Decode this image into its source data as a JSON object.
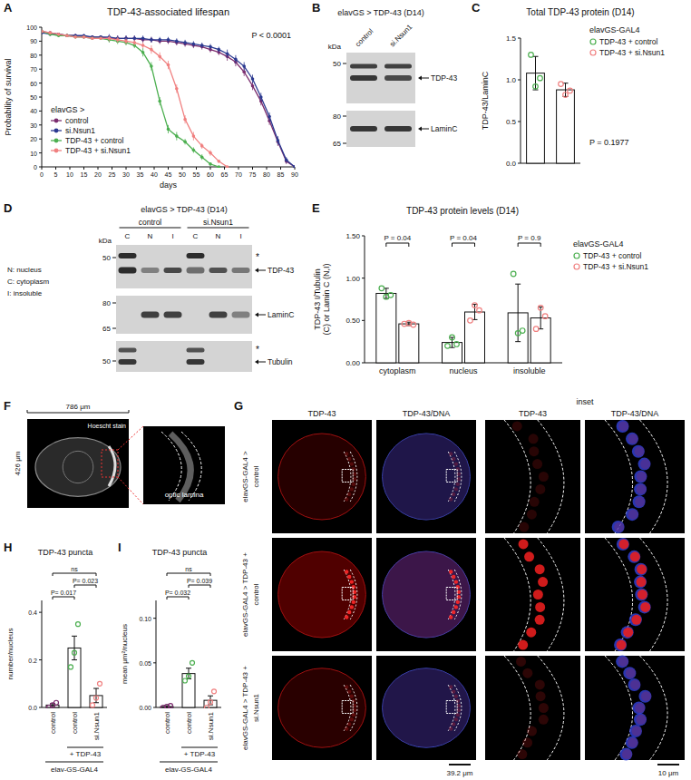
{
  "chart_data": [
    {
      "label": "A",
      "type": "line",
      "title": "TDP-43-associated lifespan",
      "x_label": "days",
      "y_label": "Probability of survival",
      "annotation": "P < 0.0001",
      "legend_title": "elavGS >",
      "legend": "bottom-left",
      "marker": "circle",
      "x": [
        0,
        3,
        6,
        9,
        12,
        15,
        18,
        21,
        24,
        27,
        30,
        33,
        36,
        39,
        42,
        45,
        48,
        51,
        54,
        57,
        60,
        63,
        66,
        69,
        72,
        75,
        78,
        81,
        84,
        87,
        90
      ],
      "series": [
        {
          "name": "control",
          "color": "#7b2d6e",
          "values": [
            97,
            96,
            95,
            94,
            94,
            93,
            93,
            93,
            92,
            92,
            92,
            92,
            91,
            91,
            90,
            90,
            89,
            88,
            87,
            86,
            84,
            82,
            79,
            75,
            68,
            58,
            47,
            33,
            18,
            4,
            0
          ],
          "errors": [
            1,
            1,
            1,
            1,
            1,
            1,
            1,
            1,
            2,
            2,
            2,
            2,
            2,
            2,
            2,
            2,
            2,
            2,
            2,
            2,
            2,
            2,
            3,
            3,
            3,
            3,
            3,
            3,
            3,
            2,
            0
          ]
        },
        {
          "name": "si.Nsun1",
          "color": "#2b3990",
          "values": [
            96,
            95,
            95,
            94,
            94,
            94,
            93,
            93,
            93,
            92,
            92,
            92,
            92,
            91,
            91,
            91,
            90,
            89,
            88,
            87,
            86,
            84,
            81,
            77,
            72,
            63,
            50,
            36,
            19,
            5,
            0
          ],
          "errors": [
            1,
            1,
            1,
            1,
            1,
            1,
            1,
            1,
            2,
            2,
            2,
            2,
            2,
            2,
            2,
            2,
            2,
            2,
            2,
            2,
            2,
            2,
            3,
            3,
            3,
            3,
            3,
            3,
            3,
            2,
            0
          ]
        },
        {
          "name": "TDP-43 + control",
          "color": "#4caf50",
          "values": [
            97,
            95,
            94,
            94,
            93,
            93,
            92,
            92,
            91,
            90,
            89,
            87,
            82,
            72,
            47,
            27,
            22,
            18,
            12,
            7,
            2,
            0,
            null,
            null,
            null,
            null,
            null,
            null,
            null,
            null,
            null
          ],
          "errors": [
            1,
            1,
            1,
            1,
            1,
            1,
            1,
            1,
            2,
            2,
            2,
            2,
            3,
            3,
            3,
            3,
            3,
            2,
            2,
            2,
            1,
            0,
            null,
            null,
            null,
            null,
            null,
            null,
            null,
            null,
            null
          ]
        },
        {
          "name": "TDP-43 + si.Nsun1",
          "color": "#f08080",
          "values": [
            97,
            96,
            95,
            94,
            93,
            93,
            92,
            92,
            92,
            91,
            90,
            89,
            87,
            84,
            79,
            73,
            56,
            34,
            22,
            15,
            10,
            4,
            0,
            null,
            null,
            null,
            null,
            null,
            null,
            null,
            null
          ],
          "errors": [
            1,
            1,
            1,
            1,
            1,
            1,
            1,
            1,
            2,
            2,
            2,
            2,
            2,
            3,
            3,
            3,
            3,
            3,
            3,
            2,
            2,
            1,
            0,
            null,
            null,
            null,
            null,
            null,
            null,
            null,
            null
          ]
        }
      ],
      "xlim": [
        0,
        90
      ],
      "xticks": [
        0,
        5,
        10,
        15,
        20,
        25,
        30,
        35,
        40,
        45,
        50,
        55,
        60,
        65,
        70,
        75,
        80,
        85,
        90
      ],
      "ylim": [
        0,
        100
      ],
      "yticks": [
        0,
        10,
        20,
        30,
        40,
        50,
        60,
        70,
        80,
        90,
        100
      ]
    },
    {
      "label": "C",
      "type": "bar",
      "title": "Total TDP-43 protein (D14)",
      "y_label": "TDP-43/LaminC",
      "legend_title": "elavGS-GAL4",
      "legend": "top-right",
      "annotation": "P = 0.1977",
      "tick_labels": "y",
      "categories": [
        "TDP-43 + control",
        "TDP-43 + si.Nsun1"
      ],
      "values": [
        1.08,
        0.88
      ],
      "errors": [
        0.2,
        0.08
      ],
      "points": [
        [
          1.3,
          0.92,
          1.02
        ],
        [
          0.95,
          0.82,
          0.87
        ]
      ],
      "colors": [
        "#4caf50",
        "#f08080"
      ],
      "ylim": [
        0,
        1.5
      ],
      "yticks": [
        {
          "value": 0,
          "label": "0.0"
        },
        0.5,
        {
          "value": 1,
          "label": "1.0"
        },
        1.5
      ]
    },
    {
      "label": "E",
      "type": "bar",
      "title": "TDP-43 protein levels (D14)",
      "y_label": "TDP-43 I/Tubulin (C) or Lamin C (N,I)",
      "legend_title": "elavGS-GAL4",
      "legend": "top-right",
      "categories": [
        "cytoplasm",
        "nucleus",
        "insoluble"
      ],
      "p_values": [
        "P = 0.04",
        "P = 0.04",
        "P = 0.9"
      ],
      "series": [
        {
          "name": "TDP-43 + control",
          "color": "#4caf50",
          "values": [
            0.82,
            0.24,
            0.59
          ],
          "errors": [
            0.06,
            0.06,
            0.34
          ],
          "points": [
            [
              0.88,
              0.78,
              0.8
            ],
            [
              0.2,
              0.3,
              0.22
            ],
            [
              1.05,
              0.35,
              0.38
            ]
          ]
        },
        {
          "name": "TDP-43 + si.Nsun1",
          "color": "#f08080",
          "values": [
            0.46,
            0.6,
            0.53
          ],
          "errors": [
            0.02,
            0.09,
            0.13
          ],
          "points": [
            [
              0.46,
              0.47,
              0.45
            ],
            [
              0.5,
              0.68,
              0.62
            ],
            [
              0.4,
              0.65,
              0.55
            ]
          ]
        }
      ],
      "ylim": [
        0,
        1.5
      ],
      "yticks": [
        {
          "value": 0,
          "label": "0.00"
        },
        {
          "value": 0.5,
          "label": "0.50"
        },
        {
          "value": 1,
          "label": "1.00"
        },
        {
          "value": 1.5,
          "label": "1.50"
        }
      ]
    },
    {
      "label": "H",
      "type": "bar",
      "title": "TDP-43 puncta",
      "y_label": "number/nucleus",
      "group_label": "+ TDP-43",
      "x_label": "elav-GS-GAL4",
      "categories": [
        "control",
        "control",
        "si.Nsun1"
      ],
      "values": [
        0.01,
        0.25,
        0.05
      ],
      "errors": [
        0.006,
        0.05,
        0.03
      ],
      "points": [
        [
          0,
          0.01,
          0.02
        ],
        [
          0.17,
          0.23,
          0.35
        ],
        [
          0.01,
          0.04,
          0.1
        ]
      ],
      "colors": [
        "#7b2d6e",
        "#4caf50",
        "#f08080"
      ],
      "comparisons": [
        {
          "pair": [
            0,
            1
          ],
          "label": "P= 0.017"
        },
        {
          "pair": [
            1,
            2
          ],
          "label": "P= 0.023"
        },
        {
          "pair": [
            0,
            2
          ],
          "label": "ns"
        }
      ],
      "ylim": [
        0,
        0.45
      ],
      "yticks": [
        {
          "value": 0,
          "label": "0.0"
        },
        0.2,
        0.4
      ]
    },
    {
      "label": "I",
      "type": "bar",
      "title": "TDP-43 puncta",
      "y_label": "mean μm²/nucleus",
      "group_label": "+ TDP-43",
      "x_label": "elav-GS-GAL4",
      "categories": [
        "control",
        "control",
        "si.Nsun1"
      ],
      "values": [
        0.001,
        0.038,
        0.008
      ],
      "errors": [
        0.001,
        0.006,
        0.005
      ],
      "points": [
        [
          0,
          0.001,
          0.002
        ],
        [
          0.03,
          0.035,
          0.05
        ],
        [
          0,
          0.006,
          0.018
        ]
      ],
      "colors": [
        "#7b2d6e",
        "#4caf50",
        "#f08080"
      ],
      "comparisons": [
        {
          "pair": [
            0,
            1
          ],
          "label": "P= 0.032"
        },
        {
          "pair": [
            1,
            2
          ],
          "label": "P= 0.039"
        },
        {
          "pair": [
            0,
            2
          ],
          "label": "ns"
        }
      ],
      "ylim": [
        0,
        0.12
      ],
      "yticks": [
        {
          "value": 0,
          "label": "0.00"
        },
        0.05,
        {
          "value": 0.1,
          "label": "0.10"
        }
      ]
    }
  ],
  "blots": [
    {
      "label": "B",
      "title": "elavGS > TDP-43 (D14)",
      "lanes": [
        "control",
        "si.Nsun1"
      ],
      "unit": "kDa",
      "markers": [
        50,
        80,
        65
      ],
      "bands": [
        "TDP-43",
        "LaminC"
      ]
    },
    {
      "label": "D",
      "title": "elavGS > TDP-43 (D14)",
      "groups": [
        "control",
        "si.Nsun1"
      ],
      "lanes": [
        "C",
        "N",
        "I"
      ],
      "key": [
        "N: nucleus",
        "C: cytoplasm",
        "I: insoluble"
      ],
      "unit": "kDa",
      "markers": [
        50,
        80,
        65,
        50
      ],
      "bands": [
        "TDP-43",
        "LaminC",
        "Tubulin"
      ],
      "nonspecific": "*"
    }
  ],
  "image_panels": [
    {
      "label": "F",
      "width_label": "786 μm",
      "height_label": "426 μm",
      "stain": "Hoescht stain",
      "region": "optic lamina"
    },
    {
      "label": "G",
      "columns": [
        "TDP-43",
        "TDP-43/DNA",
        "TDP-43",
        "TDP-43/DNA"
      ],
      "inset_head": "inset",
      "rows": [
        [
          "elavGS-GAL4 >",
          "control"
        ],
        [
          "elavGS-GAL4 > TDP-43 +",
          "control"
        ],
        [
          "elavGS-GAL4 > TDP-43 +",
          "si.Nsun1"
        ]
      ],
      "scale_bars": [
        "39.2 μm",
        "10 μm"
      ]
    }
  ]
}
